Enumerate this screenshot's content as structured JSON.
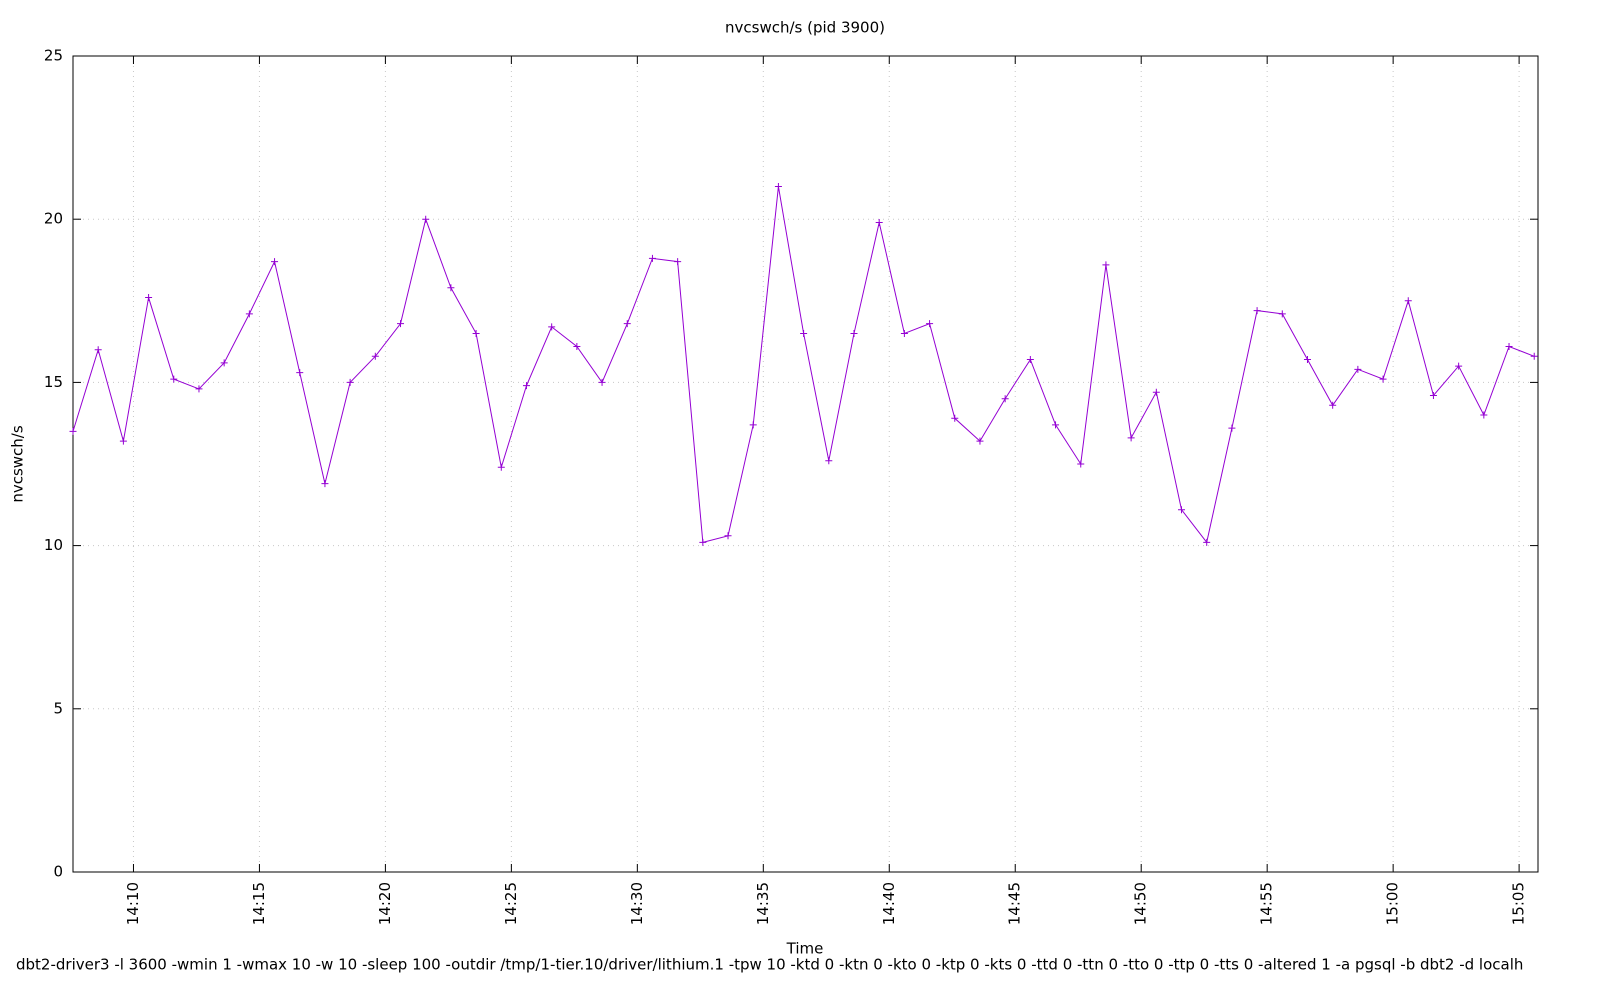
{
  "chart_data": {
    "type": "line",
    "title": "nvcswch/s (pid 3900)",
    "x_label": "Time",
    "y_label": "nvcswch/s",
    "footer": "dbt2-driver3 -l 3600 -wmin 1 -wmax 10 -w 10 -sleep 100 -outdir /tmp/1-tier.10/driver/lithium.1 -tpw 10 -ktd 0 -ktn 0 -kto 0 -ktp 0 -kts 0 -ttd 0 -ttn 0 -tto 0 -ttp 0 -tts 0 -altered 1 -a pgsql -b dbt2 -d localh",
    "x": [
      "14:07:36",
      "14:08:36",
      "14:09:36",
      "14:10:36",
      "14:11:36",
      "14:12:36",
      "14:13:36",
      "14:14:36",
      "14:15:36",
      "14:16:36",
      "14:17:36",
      "14:18:36",
      "14:19:36",
      "14:20:36",
      "14:21:36",
      "14:22:36",
      "14:23:36",
      "14:24:36",
      "14:25:36",
      "14:26:36",
      "14:27:36",
      "14:28:36",
      "14:29:36",
      "14:30:36",
      "14:31:36",
      "14:32:36",
      "14:33:36",
      "14:34:36",
      "14:35:36",
      "14:36:36",
      "14:37:36",
      "14:38:36",
      "14:39:36",
      "14:40:36",
      "14:41:36",
      "14:42:36",
      "14:43:36",
      "14:44:36",
      "14:45:36",
      "14:46:36",
      "14:47:36",
      "14:48:36",
      "14:49:36",
      "14:50:36",
      "14:51:36",
      "14:52:36",
      "14:53:36",
      "14:54:36",
      "14:55:36",
      "14:56:36",
      "14:57:36",
      "14:58:36",
      "14:59:36",
      "15:00:36",
      "15:01:36",
      "15:02:36",
      "15:03:36",
      "15:04:36",
      "15:05:36"
    ],
    "series": [
      {
        "name": "nvcswch/s",
        "color": "#9400d3",
        "values": [
          13.5,
          16.0,
          13.2,
          17.6,
          15.1,
          14.8,
          15.6,
          17.1,
          18.7,
          15.3,
          11.9,
          15.0,
          15.8,
          16.8,
          20.0,
          17.9,
          16.5,
          12.4,
          14.9,
          16.7,
          16.1,
          15.0,
          16.8,
          18.8,
          18.7,
          10.1,
          10.3,
          13.7,
          21.0,
          16.5,
          12.6,
          16.5,
          19.9,
          16.5,
          16.8,
          13.9,
          13.2,
          14.5,
          15.7,
          13.7,
          12.5,
          18.6,
          13.3,
          14.7,
          11.1,
          10.1,
          13.6,
          17.2,
          17.1,
          15.7,
          14.3,
          15.4,
          15.1,
          17.5,
          14.6,
          15.5,
          14.0,
          16.1,
          15.8
        ]
      }
    ],
    "xlim": [
      "14:07:36",
      "15:05:45"
    ],
    "xticks": [
      "14:10",
      "14:15",
      "14:20",
      "14:25",
      "14:30",
      "14:35",
      "14:40",
      "14:45",
      "14:50",
      "14:55",
      "15:00",
      "15:05"
    ],
    "ylim": [
      0,
      25
    ],
    "yticks": [
      0,
      5,
      10,
      15,
      20,
      25
    ],
    "grid": true
  }
}
